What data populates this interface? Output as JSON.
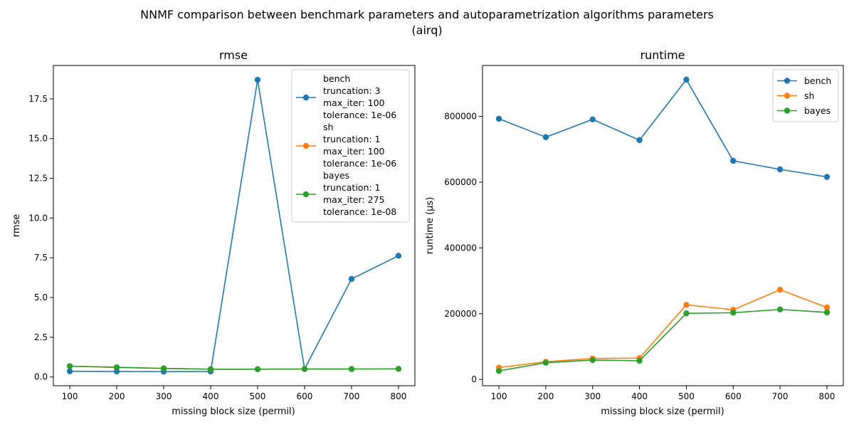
{
  "figure": {
    "suptitle_line1": "NNMF comparison between benchmark parameters and autoparametrization algorithms parameters",
    "suptitle_line2": "(airq)"
  },
  "chart_data": [
    {
      "type": "line",
      "title": "rmse",
      "xlabel": "missing block size (permil)",
      "ylabel": "rmse",
      "x": [
        100,
        200,
        300,
        400,
        500,
        600,
        700,
        800
      ],
      "xlim": [
        65,
        835
      ],
      "ylim": [
        -0.55,
        19.6
      ],
      "xticks": [
        100,
        200,
        300,
        400,
        500,
        600,
        700,
        800
      ],
      "yticks": [
        0,
        2.5,
        5,
        7.5,
        10,
        12.5,
        15,
        17.5
      ],
      "ytick_labels": [
        "0.0",
        "2.5",
        "5.0",
        "7.5",
        "10.0",
        "12.5",
        "15.0",
        "17.5"
      ],
      "grid": false,
      "legend": "top-right",
      "series": [
        {
          "name": "bench",
          "legend_lines": [
            "bench",
            "truncation: 3",
            "max_iter: 100",
            "tolerance: 1e-06"
          ],
          "color": "#1f77b4",
          "values": [
            0.36,
            0.35,
            0.34,
            0.35,
            18.7,
            0.5,
            6.17,
            7.63
          ]
        },
        {
          "name": "sh",
          "legend_lines": [
            "sh",
            "truncation: 1",
            "max_iter: 100",
            "tolerance: 1e-06"
          ],
          "color": "#ff7f0e",
          "values": [
            0.68,
            0.6,
            0.54,
            0.49,
            0.49,
            0.5,
            0.5,
            0.51
          ]
        },
        {
          "name": "bayes",
          "legend_lines": [
            "bayes",
            "truncation: 1",
            "max_iter: 275",
            "tolerance: 1e-08"
          ],
          "color": "#2ca02c",
          "values": [
            0.68,
            0.61,
            0.54,
            0.49,
            0.49,
            0.5,
            0.5,
            0.51
          ]
        }
      ]
    },
    {
      "type": "line",
      "title": "runtime",
      "xlabel": "missing block size (permil)",
      "ylabel": "runtime (µs)",
      "x": [
        100,
        200,
        300,
        400,
        500,
        600,
        700,
        800
      ],
      "xlim": [
        65,
        835
      ],
      "ylim": [
        -19000,
        955000
      ],
      "xticks": [
        100,
        200,
        300,
        400,
        500,
        600,
        700,
        800
      ],
      "yticks": [
        0,
        200000,
        400000,
        600000,
        800000
      ],
      "ytick_labels": [
        "0",
        "200000",
        "400000",
        "600000",
        "800000"
      ],
      "grid": false,
      "legend": "top-right",
      "series": [
        {
          "name": "bench",
          "legend_lines": [
            "bench"
          ],
          "color": "#1f77b4",
          "values": [
            793000,
            737000,
            791000,
            728000,
            912000,
            665000,
            639000,
            616000
          ]
        },
        {
          "name": "sh",
          "legend_lines": [
            "sh"
          ],
          "color": "#ff7f0e",
          "values": [
            36000,
            54000,
            64000,
            65000,
            227000,
            212000,
            273000,
            219000
          ]
        },
        {
          "name": "bayes",
          "legend_lines": [
            "bayes"
          ],
          "color": "#2ca02c",
          "values": [
            26000,
            51000,
            59000,
            57000,
            201000,
            203000,
            213000,
            204000
          ]
        }
      ]
    }
  ]
}
